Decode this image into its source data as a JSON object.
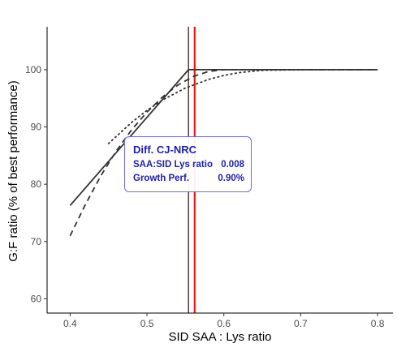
{
  "chart_data": {
    "type": "line",
    "xlabel": "SID SAA : Lys ratio",
    "ylabel": "G:F ratio (% of best performance)",
    "xlim": [
      0.37,
      0.82
    ],
    "ylim": [
      57.5,
      107.5
    ],
    "x_ticks": [
      "0.4",
      "0.5",
      "0.6",
      "0.7",
      "0.8"
    ],
    "y_ticks": [
      "60",
      "70",
      "80",
      "90",
      "100"
    ],
    "grid": false,
    "series": [
      {
        "style": "solid",
        "x": [
          0.4,
          0.554,
          0.8
        ],
        "y": [
          76.3,
          100,
          100
        ]
      },
      {
        "style": "dashed",
        "x": [
          0.4,
          0.42,
          0.44,
          0.46,
          0.48,
          0.5,
          0.52,
          0.54,
          0.56,
          0.58,
          0.6,
          0.62,
          0.65,
          0.7,
          0.8
        ],
        "y": [
          71.0,
          76.5,
          81.5,
          85.8,
          89.5,
          92.6,
          95.2,
          97.3,
          98.8,
          99.7,
          100,
          100,
          100,
          100,
          100
        ]
      },
      {
        "style": "dotted",
        "x": [
          0.45,
          0.48,
          0.5,
          0.52,
          0.55,
          0.58,
          0.6,
          0.62,
          0.65,
          0.7,
          0.8
        ],
        "y": [
          87.1,
          90.8,
          92.9,
          94.7,
          96.8,
          98.3,
          99.0,
          99.5,
          99.9,
          100,
          100
        ]
      }
    ],
    "vlines": [
      {
        "x": 0.554,
        "color": "#3a1a1a"
      },
      {
        "x": 0.562,
        "color": "#e8161e"
      },
      {
        "x": 0.562,
        "color": "#4caf3a"
      }
    ]
  },
  "annotation": {
    "title": "Diff. CJ-NRC",
    "rows": [
      {
        "label": "SAA:SID Lys ratio",
        "value": "0.008"
      },
      {
        "label": "Growth Perf.",
        "value": "0.90%"
      }
    ]
  }
}
